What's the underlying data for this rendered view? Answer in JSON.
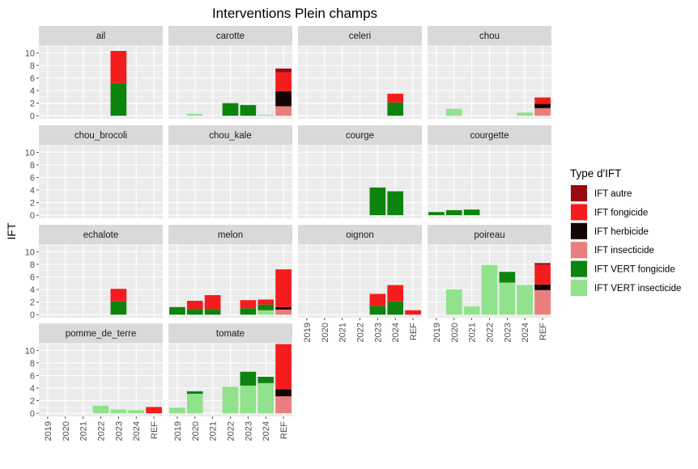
{
  "chart_data": {
    "type": "bar",
    "stacked": true,
    "title": "Interventions Plein champs",
    "ylabel": "IFT",
    "xlabel": "",
    "categories": [
      "2019",
      "2020",
      "2021",
      "2022",
      "2023",
      "2024",
      "REF"
    ],
    "ylim": [
      -0.5,
      11.2
    ],
    "yticks": [
      0,
      2,
      4,
      6,
      8,
      10
    ],
    "grid": true,
    "legend": {
      "title": "Type d'IFT",
      "position": "right",
      "entries": [
        {
          "key": "autre",
          "label": "IFT autre",
          "color": "#990a12"
        },
        {
          "key": "fongicide",
          "label": "IFT fongicide",
          "color": "#f41c1c"
        },
        {
          "key": "herbicide",
          "label": "IFT herbicide",
          "color": "#140505"
        },
        {
          "key": "insecticide",
          "label": "IFT insecticide",
          "color": "#e97f7d"
        },
        {
          "key": "vert_fongicide",
          "label": "IFT VERT fongicide",
          "color": "#0d840d"
        },
        {
          "key": "vert_insecticide",
          "label": "IFT VERT insecticide",
          "color": "#90e28d"
        }
      ]
    },
    "stack_order": [
      "vert_insecticide",
      "vert_fongicide",
      "insecticide",
      "herbicide",
      "fongicide",
      "autre"
    ],
    "panels": [
      {
        "name": "ail",
        "bars": {
          "2023": {
            "vert_fongicide": 5.2,
            "fongicide": 5.1
          }
        }
      },
      {
        "name": "carotte",
        "bars": {
          "2020": {
            "vert_insecticide": 0.3
          },
          "2022": {
            "vert_fongicide": 2.0
          },
          "2023": {
            "vert_fongicide": 1.7
          },
          "2024": {
            "vert_insecticide": 0.15
          },
          "REF": {
            "insecticide": 1.5,
            "herbicide": 2.4,
            "fongicide": 3.0,
            "autre": 0.6
          }
        }
      },
      {
        "name": "celeri",
        "bars": {
          "2024": {
            "vert_fongicide": 2.1,
            "fongicide": 1.4
          }
        }
      },
      {
        "name": "chou",
        "bars": {
          "2020": {
            "vert_insecticide": 1.1
          },
          "2024": {
            "vert_insecticide": 0.5
          },
          "REF": {
            "insecticide": 1.2,
            "herbicide": 0.7,
            "fongicide": 1.0
          }
        }
      },
      {
        "name": "chou_brocoli",
        "bars": {}
      },
      {
        "name": "chou_kale",
        "bars": {}
      },
      {
        "name": "courge",
        "bars": {
          "2023": {
            "vert_fongicide": 4.4
          },
          "2024": {
            "vert_fongicide": 3.8
          }
        }
      },
      {
        "name": "courgette",
        "bars": {
          "2019": {
            "vert_fongicide": 0.5
          },
          "2020": {
            "vert_fongicide": 0.8
          },
          "2021": {
            "vert_fongicide": 0.9
          }
        }
      },
      {
        "name": "echalote",
        "bars": {
          "2023": {
            "vert_fongicide": 2.1,
            "fongicide": 2.0
          }
        }
      },
      {
        "name": "melon",
        "bars": {
          "2019": {
            "vert_fongicide": 1.2
          },
          "2020": {
            "vert_fongicide": 0.9,
            "fongicide": 1.3
          },
          "2021": {
            "vert_fongicide": 0.9,
            "fongicide": 2.2
          },
          "2023": {
            "vert_fongicide": 1.0,
            "fongicide": 1.3
          },
          "2024": {
            "vert_insecticide": 0.7,
            "vert_fongicide": 0.9,
            "fongicide": 0.8
          },
          "REF": {
            "insecticide": 0.8,
            "herbicide": 0.4,
            "fongicide": 6.0
          }
        }
      },
      {
        "name": "oignon",
        "bars": {
          "2023": {
            "vert_fongicide": 1.4,
            "fongicide": 1.9
          },
          "2024": {
            "vert_fongicide": 2.1,
            "fongicide": 2.6
          },
          "REF": {
            "fongicide": 0.7
          }
        }
      },
      {
        "name": "poireau",
        "bars": {
          "2020": {
            "vert_insecticide": 4.0
          },
          "2021": {
            "vert_insecticide": 1.3
          },
          "2022": {
            "vert_insecticide": 7.9
          },
          "2023": {
            "vert_insecticide": 5.1,
            "vert_fongicide": 1.7
          },
          "2024": {
            "vert_insecticide": 4.7
          },
          "REF": {
            "insecticide": 3.9,
            "herbicide": 0.9,
            "fongicide": 3.1,
            "autre": 0.3
          }
        }
      },
      {
        "name": "pomme_de_terre",
        "bars": {
          "2022": {
            "vert_insecticide": 1.2
          },
          "2023": {
            "vert_insecticide": 0.6
          },
          "2024": {
            "vert_insecticide": 0.5
          },
          "REF": {
            "fongicide": 1.0
          }
        }
      },
      {
        "name": "tomate",
        "bars": {
          "2019": {
            "vert_insecticide": 0.9
          },
          "2020": {
            "vert_insecticide": 3.1,
            "vert_fongicide": 0.4
          },
          "2022": {
            "vert_insecticide": 4.2
          },
          "2023": {
            "vert_insecticide": 4.4,
            "vert_fongicide": 2.2
          },
          "2024": {
            "vert_insecticide": 4.8,
            "vert_fongicide": 1.0
          },
          "REF": {
            "insecticide": 2.7,
            "herbicide": 1.1,
            "fongicide": 7.2
          }
        }
      }
    ]
  }
}
